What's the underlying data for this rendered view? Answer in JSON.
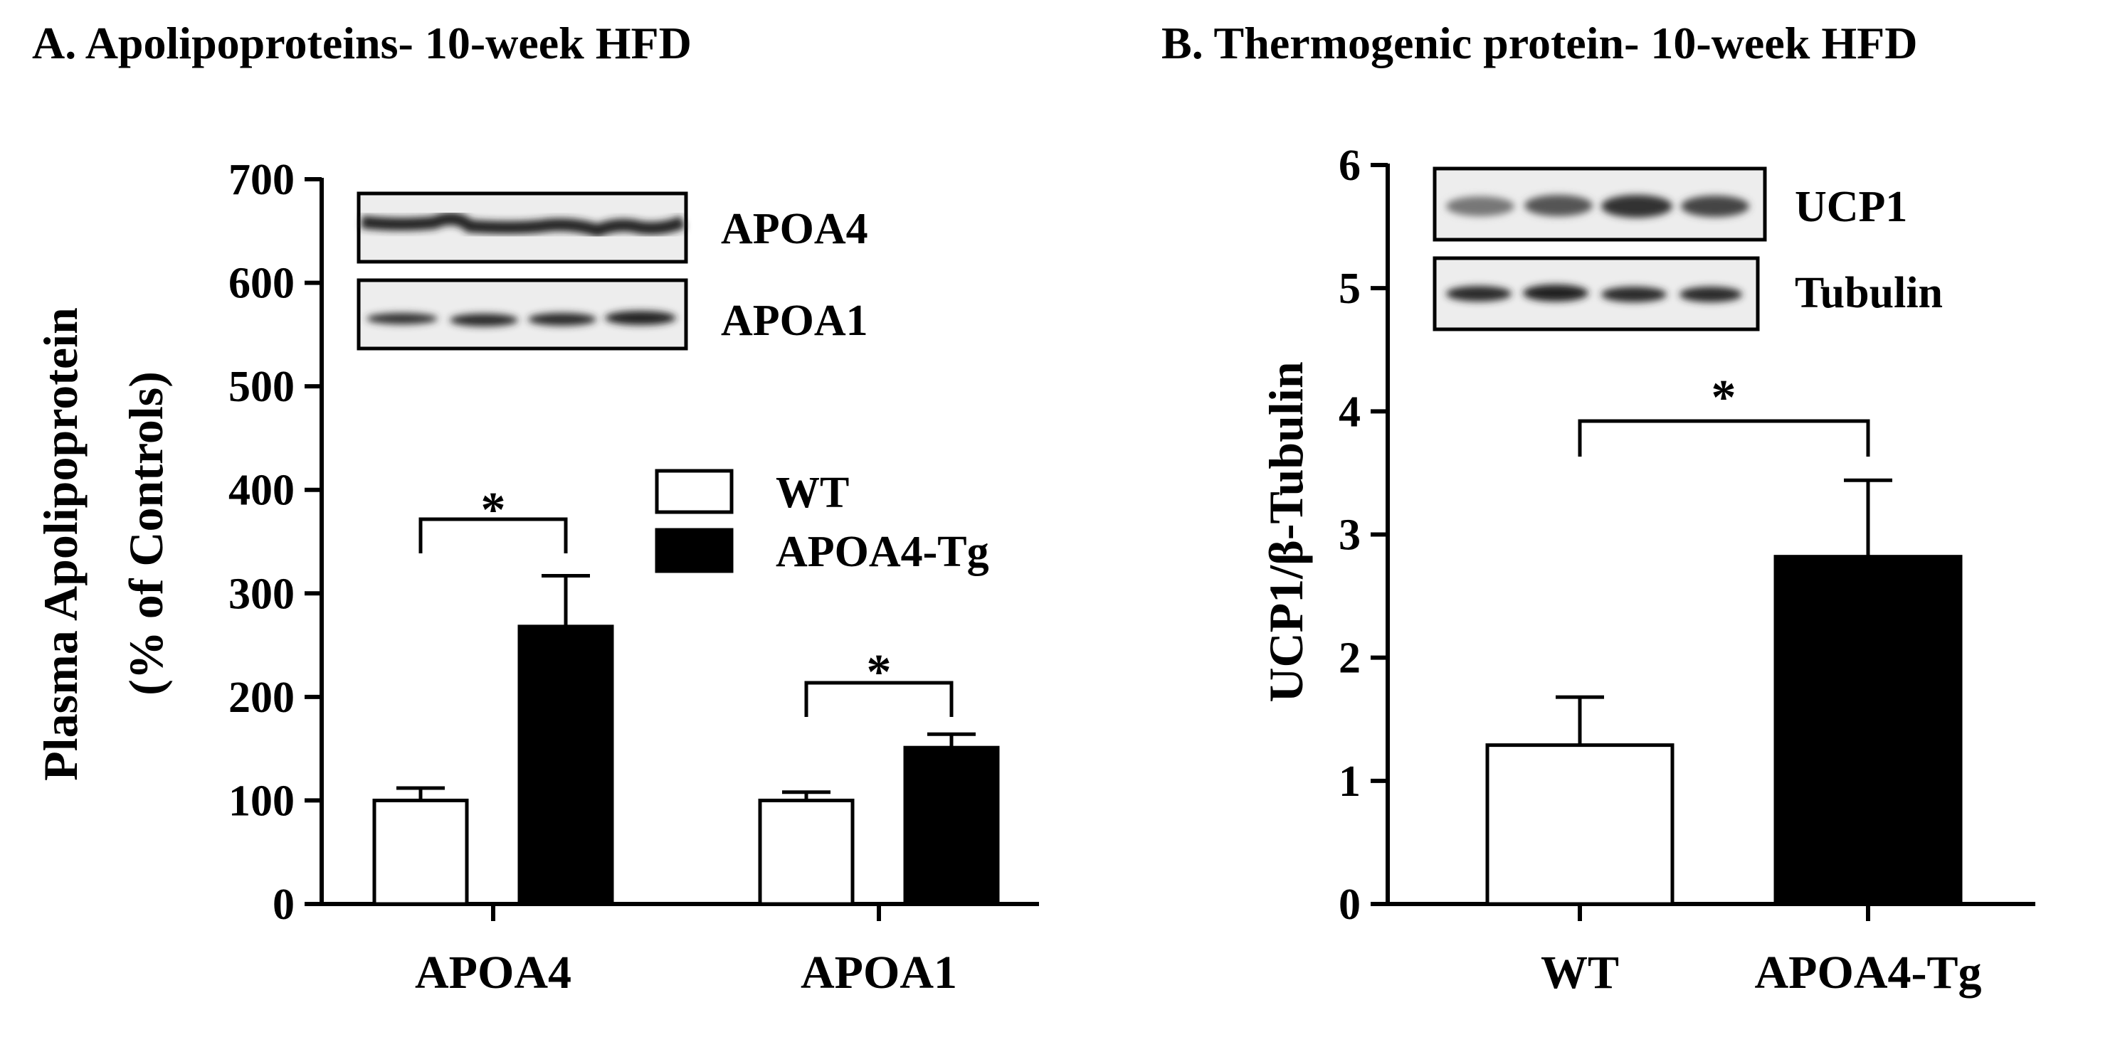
{
  "chart_data": [
    {
      "type": "bar",
      "title": "A. Apolipoproteins- 10-week HFD",
      "ylabel_line1": "Plasma Apolipoprotein",
      "ylabel_line2": "(% of Controls)",
      "ylim": [
        0,
        700
      ],
      "yticks": [
        0,
        100,
        200,
        300,
        400,
        500,
        600,
        700
      ],
      "categories": [
        "APOA4",
        "APOA1"
      ],
      "series": [
        {
          "name": "WT",
          "values": [
            100,
            100
          ],
          "errors": [
            12,
            8
          ],
          "color": "#ffffff"
        },
        {
          "name": "APOA4-Tg",
          "values": [
            268,
            151
          ],
          "errors": [
            49,
            13
          ],
          "color": "#000000"
        }
      ],
      "legend_position": "upper-right",
      "significance": [
        "*",
        "*"
      ],
      "blot_labels": [
        "APOA4",
        "APOA1"
      ]
    },
    {
      "type": "bar",
      "title": "B. Thermogenic protein- 10-week HFD",
      "ylabel": "UCP1/β-Tubulin",
      "ylim": [
        0,
        6
      ],
      "yticks": [
        0,
        1,
        2,
        3,
        4,
        5,
        6
      ],
      "categories": [
        "WT",
        "APOA4-Tg"
      ],
      "values": [
        1.29,
        2.82
      ],
      "errors": [
        0.39,
        0.62
      ],
      "colors": [
        "#ffffff",
        "#000000"
      ],
      "significance": [
        "*"
      ],
      "blot_labels": [
        "UCP1",
        "Tubulin"
      ]
    }
  ]
}
